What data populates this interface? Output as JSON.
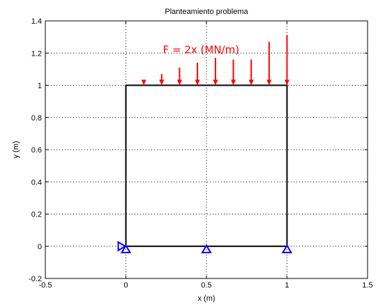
{
  "chart_data": {
    "type": "line",
    "title": "Planteamiento problema",
    "xlabel": "x (m)",
    "ylabel": "y (m)",
    "xlim": [
      -0.5,
      1.5
    ],
    "ylim": [
      -0.2,
      1.4
    ],
    "xticks": [
      -0.5,
      0,
      0.5,
      1,
      1.5
    ],
    "xtick_labels": [
      "-0.5",
      "0",
      "0.5",
      "1",
      "1.5"
    ],
    "yticks": [
      -0.2,
      0,
      0.2,
      0.4,
      0.6,
      0.8,
      1,
      1.2,
      1.4
    ],
    "ytick_labels": [
      "-0.2",
      "0",
      "0.2",
      "0.4",
      "0.6",
      "0.8",
      "1",
      "1.2",
      "1.4"
    ],
    "grid": true,
    "grid_style": "dotted",
    "series": [
      {
        "x": [
          0,
          1,
          1,
          0,
          0
        ],
        "y": [
          0,
          0,
          1,
          1,
          0
        ],
        "color": "#000000"
      }
    ],
    "load_arrows": {
      "color": "#ff0000",
      "tip_y": 1.0,
      "x": [
        0.111,
        0.222,
        0.333,
        0.444,
        0.556,
        0.667,
        0.778,
        0.889,
        1.0
      ],
      "tail_y": [
        1.03,
        1.07,
        1.11,
        1.14,
        1.17,
        1.16,
        1.16,
        1.27,
        1.31
      ]
    },
    "supports": {
      "color": "#0000ff",
      "roller": [
        {
          "x": 0,
          "y": 0
        },
        {
          "x": 0.5,
          "y": 0
        },
        {
          "x": 1,
          "y": 0
        }
      ],
      "horizontal": [
        {
          "x": 0,
          "y": 0
        }
      ]
    },
    "annotations": [
      {
        "text": "F = 2x (MN/m)",
        "x": 0.23,
        "y": 1.22,
        "color": "#ff0000"
      }
    ]
  }
}
